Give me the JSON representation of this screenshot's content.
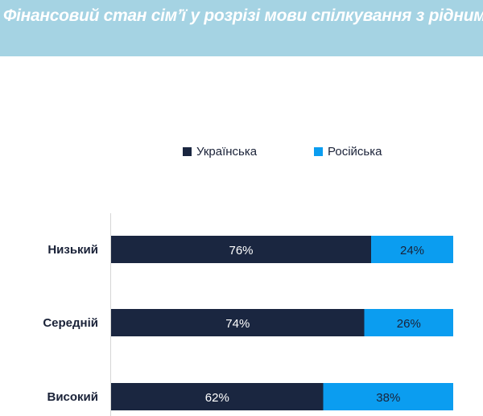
{
  "title": "Фінансовий стан сім’ї у розрізі мови спілкування з рідними",
  "colors": {
    "banner": "#a5d3e3",
    "ukrainian": "#1a2640",
    "russian": "#0b9df0",
    "title_text": "#ffffff",
    "category_text": "#1a2238"
  },
  "legend": [
    {
      "label": "Українська",
      "color": "#1a2640"
    },
    {
      "label": "Російська",
      "color": "#0b9df0"
    }
  ],
  "chart_data": {
    "type": "bar",
    "orientation": "horizontal",
    "stacked": true,
    "percent": true,
    "categories": [
      "Низький",
      "Середній",
      "Високий"
    ],
    "series": [
      {
        "name": "Українська",
        "values": [
          76,
          74,
          62
        ],
        "labels": [
          "76%",
          "74%",
          "62%"
        ],
        "color": "#1a2640"
      },
      {
        "name": "Російська",
        "values": [
          24,
          26,
          38
        ],
        "labels": [
          "24%",
          "26%",
          "38%"
        ],
        "color": "#0b9df0"
      }
    ],
    "title": "Фінансовий стан сім’ї у розрізі мови спілкування з рідними",
    "xlabel": "",
    "ylabel": "",
    "xlim": [
      0,
      100
    ],
    "legend_position": "top",
    "grid": false
  }
}
